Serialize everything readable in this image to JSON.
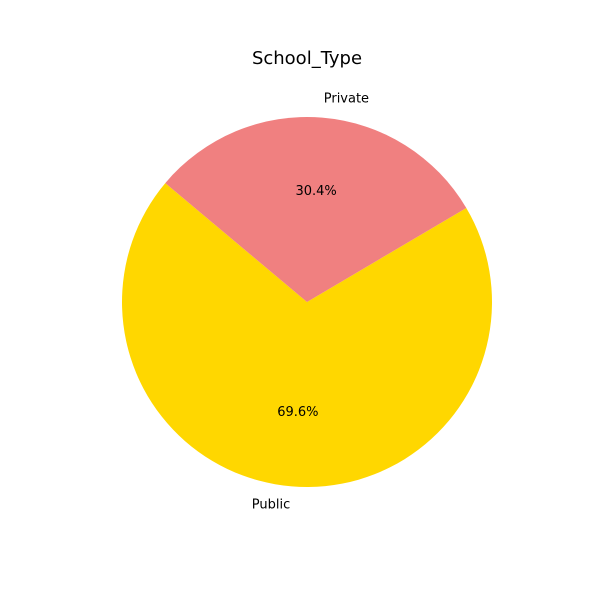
{
  "chart_data": {
    "type": "pie",
    "title": "School_Type",
    "slices": [
      {
        "label": "Public",
        "value": 69.6,
        "display": "69.6%",
        "color": "#ffd700"
      },
      {
        "label": "Private",
        "value": 30.4,
        "display": "30.4%",
        "color": "#f08080"
      }
    ],
    "start_angle_deg": 140,
    "direction": "counterclockwise",
    "legend": "none"
  }
}
